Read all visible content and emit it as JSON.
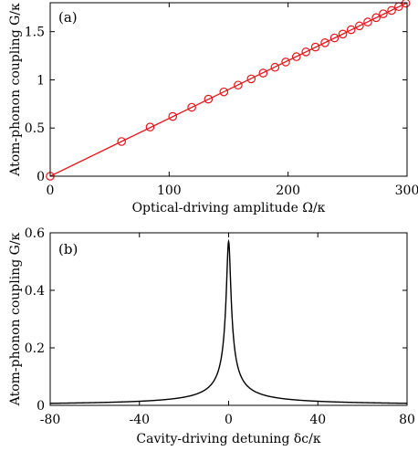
{
  "chart_data": [
    {
      "type": "line",
      "panel_label": "(a)",
      "xlabel": "Optical-driving amplitude Ω/κ",
      "ylabel": "Atom-phonon coupling G/κ",
      "xlim": [
        0,
        300
      ],
      "ylim": [
        0,
        1.8
      ],
      "xticks": [
        0,
        100,
        200,
        300
      ],
      "xtick_labels": [
        "0",
        "100",
        "200",
        "300"
      ],
      "yticks": [
        0,
        0.5,
        1,
        1.5
      ],
      "ytick_labels": [
        "0",
        "0.5",
        "1",
        "1.5"
      ],
      "grid": false,
      "series": [
        {
          "color": "#e8141a",
          "marker": "circle",
          "markers": {
            "x": [
              0,
              60,
              84,
              103,
              119,
              133,
              146,
              158,
              169,
              179,
              189,
              198,
              207,
              215,
              223,
              231,
              239,
              246,
              253,
              260,
              267,
              274,
              280,
              287,
              293,
              299
            ],
            "y": [
              0,
              0.36,
              0.51,
              0.62,
              0.715,
              0.8,
              0.875,
              0.945,
              1.01,
              1.07,
              1.13,
              1.185,
              1.24,
              1.29,
              1.34,
              1.385,
              1.435,
              1.475,
              1.52,
              1.56,
              1.6,
              1.645,
              1.685,
              1.72,
              1.76,
              1.795
            ]
          },
          "line": {
            "x": [
              0,
              300
            ],
            "y": [
              0,
              1.8
            ]
          }
        }
      ]
    },
    {
      "type": "line",
      "panel_label": "(b)",
      "xlabel": "Cavity-driving detuning δc/κ",
      "ylabel": "Atom-phonon coupling G/κ",
      "xlim": [
        -80,
        80
      ],
      "ylim": [
        0,
        0.6
      ],
      "xticks": [
        -80,
        -40,
        0,
        40,
        80
      ],
      "xtick_labels": [
        "-80",
        "-40",
        "0",
        "40",
        "80"
      ],
      "yticks": [
        0,
        0.2,
        0.4,
        0.6
      ],
      "ytick_labels": [
        "0",
        "0.2",
        "0.4",
        "0.6"
      ],
      "grid": false,
      "series": [
        {
          "color": "#000000",
          "marker": "none",
          "peak": {
            "center": 0,
            "height": 0.57,
            "half_width": 1.0
          }
        }
      ]
    }
  ]
}
